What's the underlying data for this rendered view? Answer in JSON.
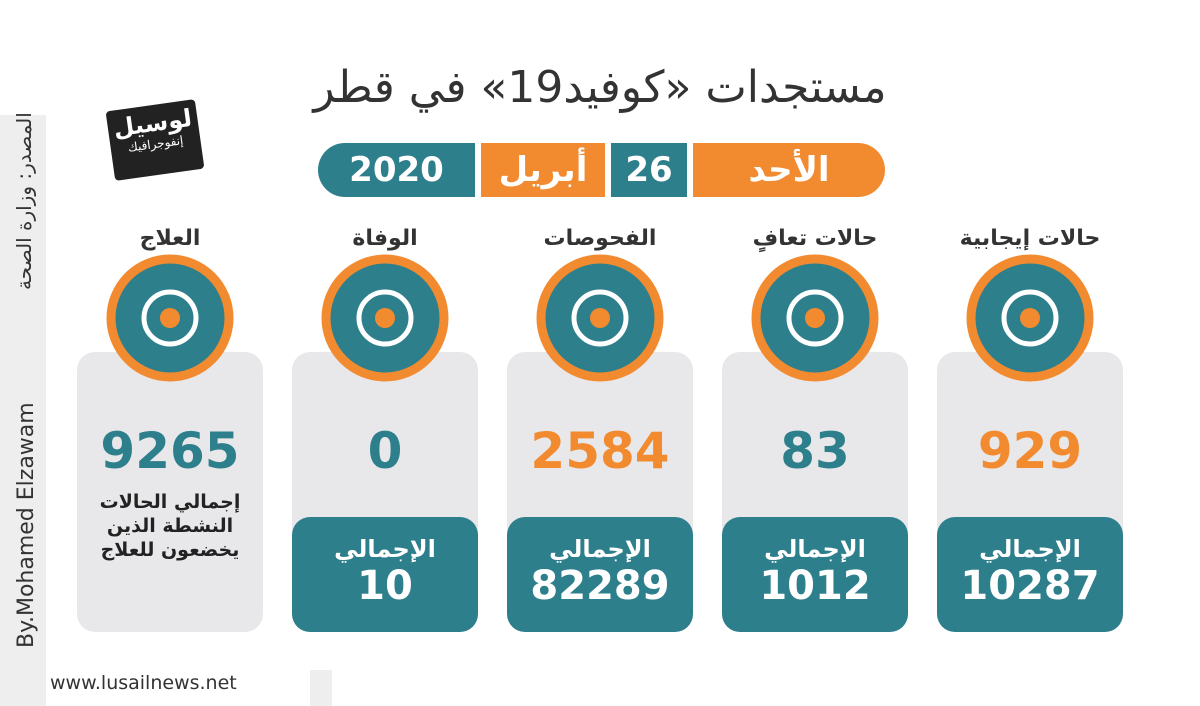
{
  "header": {
    "title": "مستجدات «كوفيد19» في قطر",
    "date": {
      "weekday": "الأحد",
      "day": "26",
      "month": "أبريل",
      "year": "2020"
    }
  },
  "logo": {
    "name": "لوسيل",
    "subtitle": "إنفوجرافيك"
  },
  "side": {
    "source": "المصدر: وزارة الصحة",
    "author": "By.Mohamed Elzawam"
  },
  "footer": {
    "website": "www.lusailnews.net"
  },
  "cards": [
    {
      "heading": "حالات إيجابية",
      "value": "929",
      "total_label": "الإجمالي",
      "total": "10287"
    },
    {
      "heading": "حالات تعافٍ",
      "value": "83",
      "total_label": "الإجمالي",
      "total": "1012"
    },
    {
      "heading": "الفحوصات",
      "value": "2584",
      "total_label": "الإجمالي",
      "total": "82289"
    },
    {
      "heading": "الوفاة",
      "value": "0",
      "total_label": "الإجمالي",
      "total": "10"
    },
    {
      "heading": "العلاج",
      "value": "9265",
      "note": "إجمالي الحالات النشطة الذين يخضعون للعلاج"
    }
  ]
}
